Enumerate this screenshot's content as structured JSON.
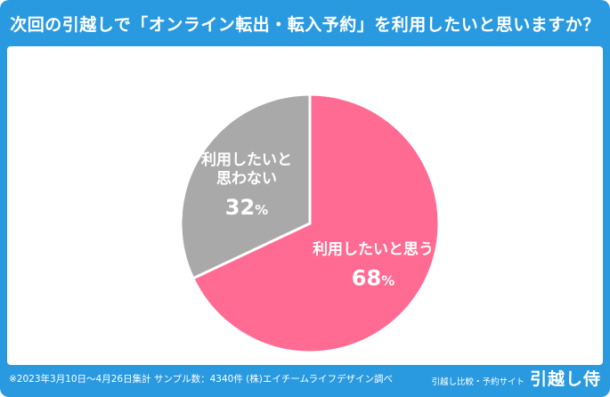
{
  "title": "次回の引越しで「オンライン転出・転入予約」を利用したいと思いますか？",
  "footnote": "※2023年3月10日〜4月26日集計 サンプル数：4340件 (株)エイチームライフデザイン調べ",
  "brand": {
    "sub": "引越し比較・予約サイト",
    "logo": "引越し侍"
  },
  "colors": {
    "background": "#2a9ae0",
    "panel": "#ffffff",
    "pink": "#ff6b93",
    "gray": "#a9a9a9"
  },
  "chart_data": {
    "type": "pie",
    "slices": [
      {
        "label_lines": [
          "利用したいと思う"
        ],
        "value": 68,
        "value_text": "68",
        "unit": "%",
        "color": "#ff6b93"
      },
      {
        "label_lines": [
          "利用したいと",
          "思わない"
        ],
        "value": 32,
        "value_text": "32",
        "unit": "%",
        "color": "#a9a9a9"
      }
    ]
  }
}
